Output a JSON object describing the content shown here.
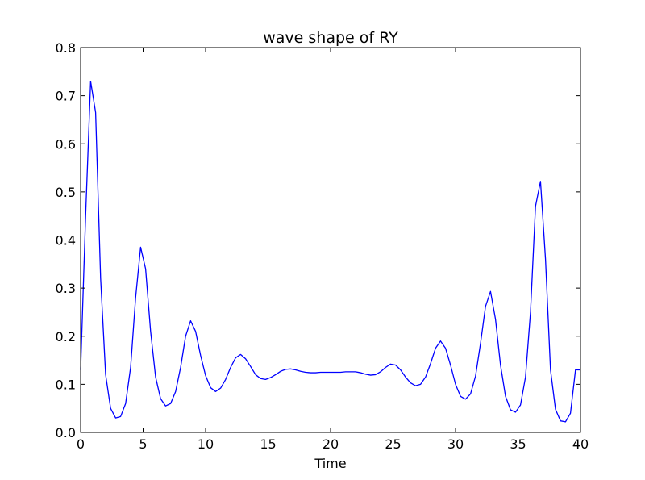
{
  "chart_data": {
    "type": "line",
    "title": "wave shape of RY",
    "xlabel": "Time",
    "ylabel": "",
    "xlim": [
      0,
      40
    ],
    "ylim": [
      0,
      0.8
    ],
    "xticks": [
      0,
      5,
      10,
      15,
      20,
      25,
      30,
      35,
      40
    ],
    "xtick_labels": [
      "0",
      "5",
      "10",
      "15",
      "20",
      "25",
      "30",
      "35",
      "40"
    ],
    "yticks": [
      0.0,
      0.1,
      0.2,
      0.3,
      0.4,
      0.5,
      0.6,
      0.7,
      0.8
    ],
    "ytick_labels": [
      "0.0",
      "0.1",
      "0.2",
      "0.3",
      "0.4",
      "0.5",
      "0.6",
      "0.7",
      "0.8"
    ],
    "grid": false,
    "legend": "none",
    "series": [
      {
        "color": "#0000ff",
        "x": [
          0,
          0.4,
          0.8,
          1.2,
          1.6,
          2.0,
          2.4,
          2.8,
          3.2,
          3.6,
          4.0,
          4.4,
          4.8,
          5.2,
          5.6,
          6.0,
          6.4,
          6.8,
          7.2,
          7.6,
          8.0,
          8.4,
          8.8,
          9.2,
          9.6,
          10.0,
          10.4,
          10.8,
          11.2,
          11.6,
          12.0,
          12.4,
          12.8,
          13.2,
          13.6,
          14.0,
          14.4,
          14.8,
          15.2,
          15.6,
          16.0,
          16.4,
          16.8,
          17.2,
          17.6,
          18.0,
          18.4,
          18.8,
          19.2,
          19.6,
          20.0,
          20.4,
          20.8,
          21.2,
          21.6,
          22.0,
          22.4,
          22.8,
          23.2,
          23.6,
          24.0,
          24.4,
          24.8,
          25.2,
          25.6,
          26.0,
          26.4,
          26.8,
          27.2,
          27.6,
          28.0,
          28.4,
          28.8,
          29.2,
          29.6,
          30.0,
          30.4,
          30.8,
          31.2,
          31.6,
          32.0,
          32.4,
          32.8,
          33.2,
          33.6,
          34.0,
          34.4,
          34.8,
          35.2,
          35.6,
          36.0,
          36.4,
          36.8,
          37.2,
          37.6,
          38.0,
          38.4,
          38.8,
          39.2,
          39.6,
          40.0
        ],
        "y": [
          0.13,
          0.45,
          0.73,
          0.665,
          0.32,
          0.12,
          0.05,
          0.03,
          0.033,
          0.06,
          0.135,
          0.28,
          0.385,
          0.34,
          0.21,
          0.115,
          0.07,
          0.055,
          0.06,
          0.085,
          0.135,
          0.2,
          0.232,
          0.21,
          0.16,
          0.118,
          0.093,
          0.085,
          0.092,
          0.11,
          0.135,
          0.155,
          0.162,
          0.153,
          0.137,
          0.12,
          0.112,
          0.11,
          0.114,
          0.12,
          0.127,
          0.131,
          0.132,
          0.13,
          0.127,
          0.125,
          0.124,
          0.124,
          0.125,
          0.125,
          0.125,
          0.125,
          0.125,
          0.126,
          0.126,
          0.126,
          0.124,
          0.121,
          0.119,
          0.12,
          0.126,
          0.135,
          0.142,
          0.14,
          0.13,
          0.115,
          0.103,
          0.097,
          0.1,
          0.115,
          0.143,
          0.175,
          0.19,
          0.175,
          0.14,
          0.1,
          0.075,
          0.069,
          0.08,
          0.117,
          0.185,
          0.262,
          0.293,
          0.235,
          0.14,
          0.075,
          0.047,
          0.042,
          0.057,
          0.115,
          0.25,
          0.47,
          0.522,
          0.36,
          0.13,
          0.048,
          0.024,
          0.022,
          0.04,
          0.13,
          0.13
        ]
      }
    ]
  }
}
